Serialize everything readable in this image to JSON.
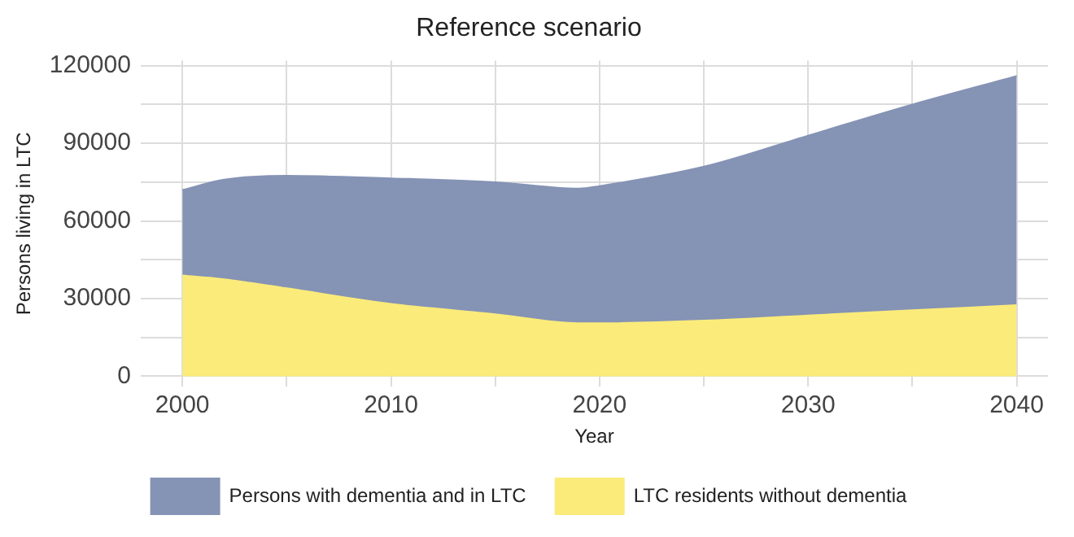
{
  "chart_data": {
    "type": "area",
    "title": "Reference scenario",
    "xlabel": "Year",
    "ylabel": "Persons living in LTC",
    "stacked": true,
    "x": [
      2000,
      2002,
      2005,
      2010,
      2015,
      2019,
      2020,
      2025,
      2030,
      2035,
      2040
    ],
    "series": [
      {
        "name": "LTC residents without dementia",
        "color": "#fbeb7a",
        "values": [
          39000,
          37500,
          34000,
          28000,
          24000,
          20500,
          20500,
          21500,
          23500,
          25500,
          27500
        ]
      },
      {
        "name": "Persons with dementia and in LTC",
        "color": "#8593b5",
        "values": [
          33000,
          38500,
          43500,
          48500,
          51000,
          52000,
          53000,
          59500,
          69500,
          79500,
          88500
        ]
      }
    ],
    "xlim": [
      1998,
      2041.5
    ],
    "xticks": [
      2000,
      {
        "value": 2005,
        "label": null
      },
      2010,
      {
        "value": 2015,
        "label": null
      },
      2020,
      {
        "value": 2025,
        "label": null
      },
      2030,
      {
        "value": 2035,
        "label": null
      },
      2040
    ],
    "ylim": [
      -4000,
      122000
    ],
    "yticks": [
      0,
      {
        "value": 15000,
        "label": null
      },
      30000,
      {
        "value": 45000,
        "label": null
      },
      60000,
      {
        "value": 75000,
        "label": null
      },
      90000,
      {
        "value": 105000,
        "label": null
      },
      120000
    ],
    "grid": true,
    "legend": "bottom",
    "marker": "none"
  }
}
